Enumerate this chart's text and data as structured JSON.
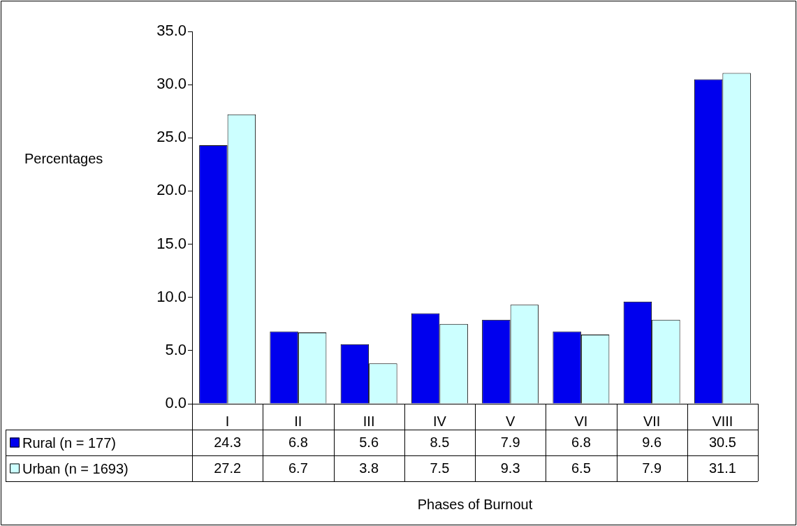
{
  "chart_data": {
    "type": "bar",
    "xlabel": "Phases of Burnout",
    "ylabel": "Percentages",
    "categories": [
      "I",
      "II",
      "III",
      "IV",
      "V",
      "VI",
      "VII",
      "VIII"
    ],
    "series": [
      {
        "name": "Rural (n = 177)",
        "color": "#0000ee",
        "values": [
          24.3,
          6.8,
          5.6,
          8.5,
          7.9,
          6.8,
          9.6,
          30.5
        ]
      },
      {
        "name": "Urban (n = 1693)",
        "color": "#ccffff",
        "values": [
          27.2,
          6.7,
          3.8,
          7.5,
          9.3,
          6.5,
          7.9,
          31.1
        ]
      }
    ],
    "ylim": [
      0,
      35
    ],
    "yticks": [
      {
        "value": 0,
        "label": "0.0"
      },
      {
        "value": 5,
        "label": "5.0"
      },
      {
        "value": 10,
        "label": "10.0"
      },
      {
        "value": 15,
        "label": "15.0"
      },
      {
        "value": 20,
        "label": "20.0"
      },
      {
        "value": 25,
        "label": "25.0"
      },
      {
        "value": 30,
        "label": "30.0"
      },
      {
        "value": 35,
        "label": "35.0"
      }
    ],
    "grid": false,
    "legend": "bottom left",
    "data_labels": true
  }
}
